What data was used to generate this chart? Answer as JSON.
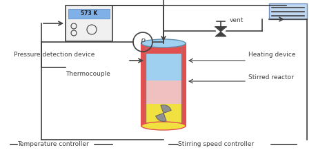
{
  "bg_color": "#ffffff",
  "line_color": "#404040",
  "reactor_outer_color": "#e05050",
  "reactor_liquid_upper_color": "#f0c0c0",
  "reactor_liquid_lower_color": "#f0e040",
  "reactor_top_color": "#a0d0f0",
  "controller_box_color": "#f0f0f0",
  "controller_label_bg": "#80b0e8",
  "device_box_color": "#c0d8f0",
  "labels": {
    "temp_label": "573 K",
    "pressure": "P",
    "vent": "vent",
    "heating": "Heating device",
    "stirred": "Stirred reactor",
    "thermocouple": "Thermocouple",
    "pressure_device": "Pressure detection device",
    "temp_controller": "Temperature controller",
    "stirring_controller": "Stirring speed controller"
  }
}
